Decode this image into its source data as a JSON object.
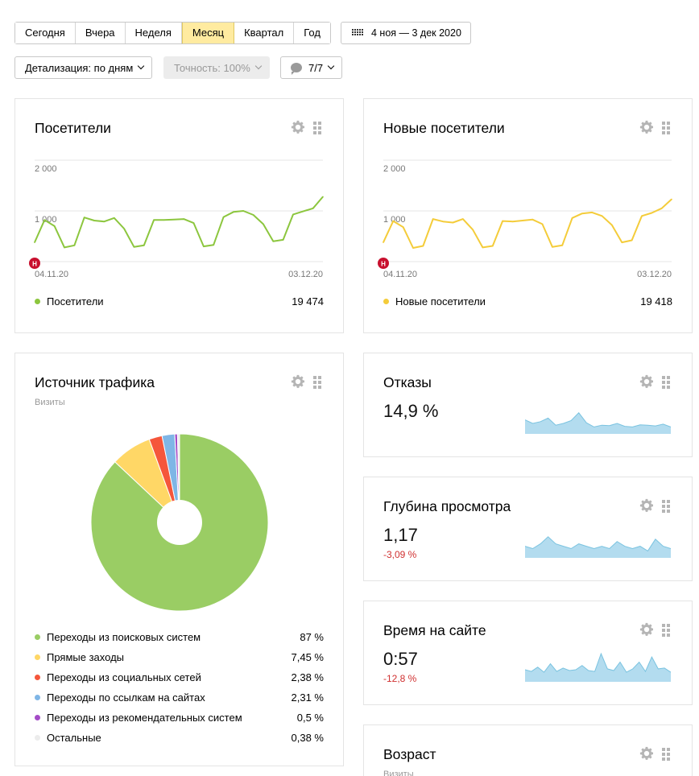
{
  "period_tabs": [
    {
      "label": "Сегодня",
      "active": false
    },
    {
      "label": "Вчера",
      "active": false
    },
    {
      "label": "Неделя",
      "active": false
    },
    {
      "label": "Месяц",
      "active": true
    },
    {
      "label": "Квартал",
      "active": false
    },
    {
      "label": "Год",
      "active": false
    }
  ],
  "date_range": "4 ноя — 3 дек 2020",
  "controls": {
    "detail": "Детализация: по дням",
    "accuracy": "Точность: 100%",
    "annotations": "7/7"
  },
  "colors": {
    "green": "#8cc63e",
    "yellow": "#f4cc3a",
    "sparkline": "#b3dcef",
    "sparkline_stroke": "#7ac3e0",
    "negative": "#d03030",
    "active_tab": "#ffeba0"
  },
  "icons": {
    "settings": "gear-icon",
    "drag": "grip-icon",
    "calendar": "calendar-icon",
    "annotation": "comment-icon",
    "marker": "holiday-marker-icon"
  },
  "visitors": {
    "title": "Посетители",
    "y_ticks": [
      "2 000",
      "1 000"
    ],
    "x_start": "04.11.20",
    "x_end": "03.12.20",
    "marker": "Н",
    "legend_label": "Посетители",
    "legend_value": "19 474"
  },
  "new_visitors": {
    "title": "Новые посетители",
    "y_ticks": [
      "2 000",
      "1 000"
    ],
    "x_start": "04.11.20",
    "x_end": "03.12.20",
    "marker": "Н",
    "legend_label": "Новые посетители",
    "legend_value": "19 418"
  },
  "traffic": {
    "title": "Источник трафика",
    "subtitle": "Визиты",
    "items": [
      {
        "label": "Переходы из поисковых систем",
        "value": "87 %",
        "share": 87,
        "color": "#9acd64"
      },
      {
        "label": "Прямые заходы",
        "value": "7,45 %",
        "share": 7.45,
        "color": "#ffd766"
      },
      {
        "label": "Переходы из социальных сетей",
        "value": "2,38 %",
        "share": 2.38,
        "color": "#f5563b"
      },
      {
        "label": "Переходы по ссылкам на сайтах",
        "value": "2,31 %",
        "share": 2.31,
        "color": "#7fb6e6"
      },
      {
        "label": "Переходы из рекомендательных систем",
        "value": "0,5 %",
        "share": 0.5,
        "color": "#a44cc7"
      },
      {
        "label": "Остальные",
        "value": "0,38 %",
        "share": 0.38,
        "color": "#ececec"
      }
    ]
  },
  "bounces": {
    "title": "Отказы",
    "value": "14,9 %",
    "delta": ""
  },
  "depth": {
    "title": "Глубина просмотра",
    "value": "1,17",
    "delta": "-3,09 %"
  },
  "time": {
    "title": "Время на сайте",
    "value": "0:57",
    "delta": "-12,8 %"
  },
  "age": {
    "title": "Возраст",
    "subtitle": "Визиты"
  },
  "chart_data": [
    {
      "type": "line",
      "title": "Посетители",
      "x_range": [
        "04.11.20",
        "03.12.20"
      ],
      "ylim": [
        0,
        2000
      ],
      "y_ticks": [
        1000,
        2000
      ],
      "series": [
        {
          "name": "Посетители",
          "values": [
            380,
            820,
            700,
            280,
            320,
            870,
            810,
            790,
            860,
            650,
            290,
            320,
            820,
            820,
            830,
            840,
            760,
            300,
            330,
            880,
            980,
            1000,
            920,
            740,
            400,
            430,
            930,
            990,
            1050,
            1280
          ]
        }
      ]
    },
    {
      "type": "line",
      "title": "Новые посетители",
      "x_range": [
        "04.11.20",
        "03.12.20"
      ],
      "ylim": [
        0,
        2000
      ],
      "y_ticks": [
        1000,
        2000
      ],
      "series": [
        {
          "name": "Новые посетители",
          "values": [
            380,
            800,
            680,
            270,
            310,
            840,
            790,
            770,
            840,
            630,
            280,
            310,
            800,
            790,
            810,
            830,
            740,
            290,
            320,
            860,
            950,
            970,
            900,
            720,
            380,
            420,
            900,
            960,
            1050,
            1230
          ]
        }
      ]
    },
    {
      "type": "pie",
      "title": "Источник трафика",
      "categories": [
        "Переходы из поисковых систем",
        "Прямые заходы",
        "Переходы из социальных сетей",
        "Переходы по ссылкам на сайтах",
        "Переходы из рекомендательных систем",
        "Остальные"
      ],
      "values": [
        87,
        7.45,
        2.38,
        2.31,
        0.5,
        0.38
      ]
    },
    {
      "type": "area",
      "title": "Отказы",
      "values": [
        15,
        14,
        14.5,
        15.5,
        13.5,
        14,
        14.8,
        17,
        14.2,
        13,
        13.5,
        13.4,
        14,
        13.2,
        13,
        13.6,
        13.5,
        13.3,
        13.8,
        13
      ]
    },
    {
      "type": "area",
      "title": "Глубина просмотра",
      "values": [
        1.16,
        1.15,
        1.17,
        1.2,
        1.17,
        1.16,
        1.15,
        1.17,
        1.16,
        1.15,
        1.16,
        1.15,
        1.18,
        1.16,
        1.15,
        1.16,
        1.14,
        1.19,
        1.16,
        1.15
      ]
    },
    {
      "type": "area",
      "title": "Время на сайте",
      "values": [
        57,
        55,
        60,
        54,
        64,
        55,
        59,
        56,
        57,
        62,
        56,
        55,
        76,
        58,
        56,
        66,
        54,
        58,
        66,
        55,
        72,
        58,
        59,
        54
      ]
    }
  ]
}
